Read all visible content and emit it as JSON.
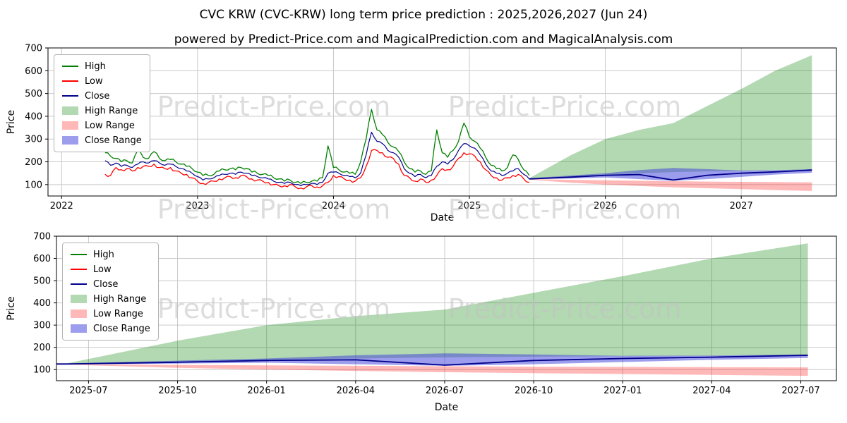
{
  "chart_data": {
    "type": "line",
    "title": "CVC KRW (CVC-KRW) long term price prediction : 2025,2026,2027 (Jun 24)",
    "subtitle": "powered by Predict-Price.com and MagicalPrediction.com and MagicalAnalysis.com",
    "watermark": "Predict-Price.com",
    "legend": [
      {
        "key": "high",
        "label": "High",
        "type": "line",
        "color": "#008000"
      },
      {
        "key": "low",
        "label": "Low",
        "type": "line",
        "color": "#ff0000"
      },
      {
        "key": "close",
        "label": "Close",
        "type": "line",
        "color": "#00008b"
      },
      {
        "key": "high-range",
        "label": "High Range",
        "type": "patch",
        "color": "rgba(0,128,0,0.30)"
      },
      {
        "key": "low-range",
        "label": "Low Range",
        "type": "patch",
        "color": "rgba(255,0,0,0.28)"
      },
      {
        "key": "close-range",
        "label": "Close Range",
        "type": "patch",
        "color": "rgba(60,60,220,0.50)"
      }
    ],
    "colors": {
      "high_line": "#008000",
      "low_line": "#ff0000",
      "close_line": "#00008b",
      "high_fill": "rgba(0,128,0,0.30)",
      "low_fill": "rgba(255,0,0,0.28)",
      "close_fill": "rgba(60,60,220,0.50)",
      "grid": "#c9c9c9",
      "watermark": "#c3c3c3"
    },
    "top_chart": {
      "xlabel": "Date",
      "ylabel": "Price",
      "xlim": [
        2021.9,
        2027.7
      ],
      "ylim": [
        50,
        700
      ],
      "yticks": [
        100,
        200,
        300,
        400,
        500,
        600,
        700
      ],
      "xticks": [
        {
          "v": 2022,
          "label": "2022"
        },
        {
          "v": 2023,
          "label": "2023"
        },
        {
          "v": 2024,
          "label": "2024"
        },
        {
          "v": 2025,
          "label": "2025"
        },
        {
          "v": 2026,
          "label": "2026"
        },
        {
          "v": 2027,
          "label": "2027"
        }
      ]
    },
    "bottom_chart": {
      "xlabel": "Date",
      "ylabel": "Price",
      "xlim": [
        2025.41,
        2027.6
      ],
      "ylim": [
        50,
        700
      ],
      "yticks": [
        100,
        200,
        300,
        400,
        500,
        600,
        700
      ],
      "xticks": [
        {
          "v": 2025.5,
          "label": "2025-07"
        },
        {
          "v": 2025.75,
          "label": "2025-10"
        },
        {
          "v": 2026.0,
          "label": "2026-01"
        },
        {
          "v": 2026.25,
          "label": "2026-04"
        },
        {
          "v": 2026.5,
          "label": "2026-07"
        },
        {
          "v": 2026.75,
          "label": "2026-10"
        },
        {
          "v": 2027.0,
          "label": "2027-01"
        },
        {
          "v": 2027.25,
          "label": "2027-04"
        },
        {
          "v": 2027.5,
          "label": "2027-07"
        }
      ]
    },
    "series": {
      "historical": {
        "x": [
          2022.32,
          2022.36,
          2022.4,
          2022.44,
          2022.48,
          2022.52,
          2022.56,
          2022.6,
          2022.64,
          2022.68,
          2022.72,
          2022.76,
          2022.8,
          2022.84,
          2022.88,
          2022.92,
          2022.96,
          2023.0,
          2023.04,
          2023.08,
          2023.12,
          2023.16,
          2023.2,
          2023.24,
          2023.28,
          2023.32,
          2023.36,
          2023.4,
          2023.44,
          2023.48,
          2023.52,
          2023.56,
          2023.6,
          2023.64,
          2023.68,
          2023.72,
          2023.76,
          2023.8,
          2023.84,
          2023.88,
          2023.92,
          2023.96,
          2024.0,
          2024.04,
          2024.08,
          2024.12,
          2024.16,
          2024.2,
          2024.24,
          2024.28,
          2024.32,
          2024.36,
          2024.4,
          2024.44,
          2024.48,
          2024.52,
          2024.56,
          2024.6,
          2024.64,
          2024.68,
          2024.72,
          2024.76,
          2024.8,
          2024.84,
          2024.88,
          2024.92,
          2024.96,
          2025.0,
          2025.04,
          2025.08,
          2025.12,
          2025.16,
          2025.2,
          2025.24,
          2025.28,
          2025.32,
          2025.36,
          2025.4,
          2025.44
        ],
        "high": [
          240,
          225,
          215,
          200,
          205,
          195,
          250,
          220,
          215,
          245,
          215,
          205,
          210,
          200,
          190,
          180,
          170,
          155,
          140,
          140,
          145,
          160,
          165,
          170,
          165,
          175,
          170,
          155,
          150,
          145,
          140,
          130,
          125,
          115,
          120,
          110,
          105,
          110,
          115,
          115,
          130,
          270,
          175,
          165,
          155,
          150,
          145,
          200,
          300,
          430,
          340,
          320,
          285,
          265,
          245,
          200,
          170,
          155,
          160,
          145,
          160,
          340,
          240,
          220,
          250,
          290,
          370,
          310,
          290,
          260,
          220,
          185,
          170,
          160,
          175,
          230,
          210,
          165,
          140
        ],
        "low": [
          145,
          140,
          175,
          165,
          170,
          160,
          175,
          180,
          180,
          190,
          175,
          170,
          175,
          160,
          150,
          145,
          130,
          115,
          105,
          110,
          115,
          125,
          130,
          135,
          130,
          140,
          135,
          125,
          120,
          115,
          110,
          100,
          95,
          95,
          100,
          90,
          85,
          90,
          95,
          90,
          95,
          110,
          140,
          135,
          125,
          120,
          115,
          130,
          180,
          250,
          250,
          240,
          220,
          215,
          190,
          140,
          130,
          115,
          125,
          110,
          120,
          140,
          170,
          165,
          180,
          215,
          240,
          235,
          225,
          200,
          165,
          140,
          130,
          120,
          130,
          140,
          145,
          125,
          110
        ],
        "close": [
          205,
          185,
          195,
          180,
          185,
          175,
          190,
          200,
          195,
          205,
          195,
          185,
          190,
          180,
          170,
          160,
          150,
          135,
          120,
          125,
          130,
          140,
          145,
          150,
          145,
          155,
          150,
          140,
          135,
          130,
          125,
          115,
          110,
          105,
          110,
          100,
          95,
          100,
          105,
          100,
          110,
          150,
          155,
          150,
          140,
          135,
          130,
          150,
          230,
          330,
          290,
          280,
          250,
          240,
          220,
          170,
          150,
          135,
          145,
          130,
          140,
          180,
          200,
          190,
          210,
          250,
          280,
          270,
          260,
          230,
          190,
          160,
          150,
          140,
          150,
          160,
          170,
          145,
          125
        ]
      },
      "forecast": {
        "x": [
          2025.44,
          2025.75,
          2026.0,
          2026.25,
          2026.5,
          2026.75,
          2027.0,
          2027.25,
          2027.52
        ],
        "high_upper": [
          128,
          230,
          300,
          340,
          370,
          445,
          520,
          600,
          668
        ],
        "high_lower": [
          126,
          136,
          144,
          150,
          155,
          158,
          160,
          162,
          165
        ],
        "low_upper": [
          124,
          121,
          119,
          117,
          115,
          113,
          112,
          111,
          110
        ],
        "low_lower": [
          122,
          108,
          100,
          94,
          88,
          84,
          80,
          76,
          72
        ],
        "close_upper": [
          128,
          140,
          150,
          164,
          173,
          168,
          162,
          163,
          168
        ],
        "close_lower": [
          123,
          127,
          131,
          124,
          117,
          124,
          134,
          144,
          152
        ],
        "close": [
          125,
          133,
          141,
          144,
          120,
          141,
          150,
          156,
          164
        ]
      }
    }
  }
}
